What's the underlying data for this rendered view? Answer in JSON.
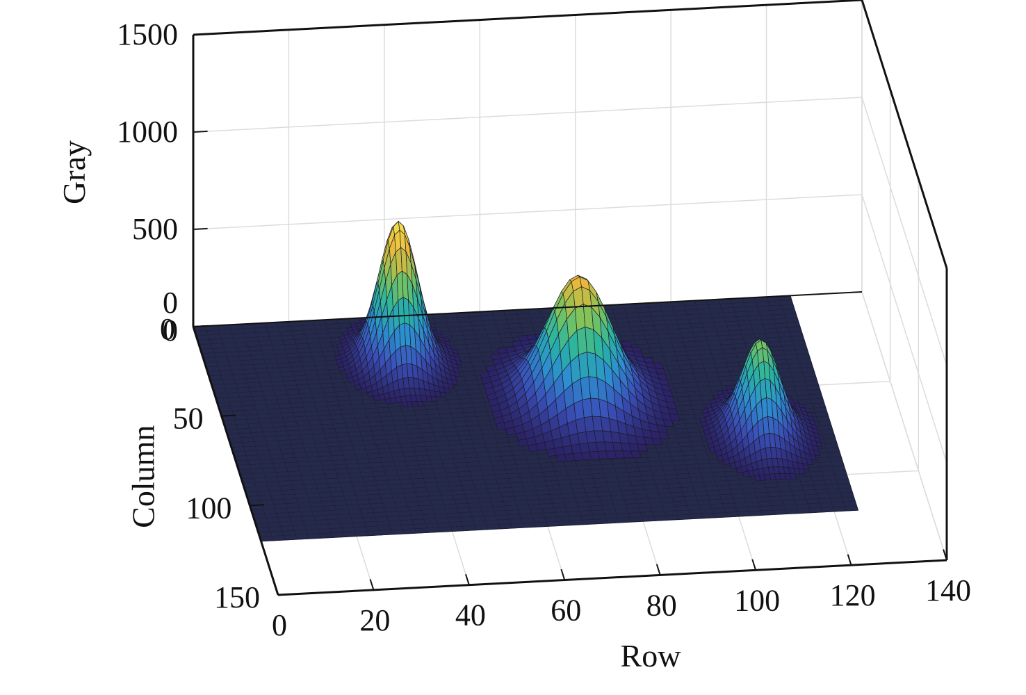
{
  "chart_data": {
    "type": "surface3d",
    "title": "",
    "xlabel": "Row",
    "ylabel": "Column",
    "zlabel": "Gray",
    "xlim": [
      0,
      140
    ],
    "ylim": [
      0,
      150
    ],
    "zlim": [
      0,
      1500
    ],
    "xticks": [
      0,
      20,
      40,
      60,
      80,
      100,
      120,
      140
    ],
    "yticks": [
      0,
      50,
      100,
      150
    ],
    "zticks": [
      0,
      500,
      1000,
      1500
    ],
    "xtick_labels": [
      "0",
      "20",
      "40",
      "60",
      "80",
      "100",
      "120",
      "140"
    ],
    "ytick_labels": [
      "0",
      "50",
      "100",
      "150"
    ],
    "ztick_labels": [
      "0",
      "500",
      "1000",
      "1500"
    ],
    "extra_tick_label": "0",
    "grid": true,
    "colormap": [
      "#2a1f5e",
      "#3a4fb8",
      "#2d8fd0",
      "#29b5a0",
      "#7fc45a",
      "#e8b83a",
      "#f2e24a"
    ],
    "floor_color": "#262a4a",
    "surface_extent": {
      "x": [
        0,
        125
      ],
      "y": [
        0,
        120
      ]
    },
    "peaks": [
      {
        "row": 40,
        "column": 25,
        "height": 720,
        "sigma_row": 4.0,
        "sigma_column": 8.0
      },
      {
        "row": 75,
        "column": 50,
        "height": 620,
        "sigma_row": 6.5,
        "sigma_column": 12.0
      },
      {
        "row": 110,
        "column": 75,
        "height": 480,
        "sigma_row": 4.0,
        "sigma_column": 9.0
      }
    ]
  }
}
